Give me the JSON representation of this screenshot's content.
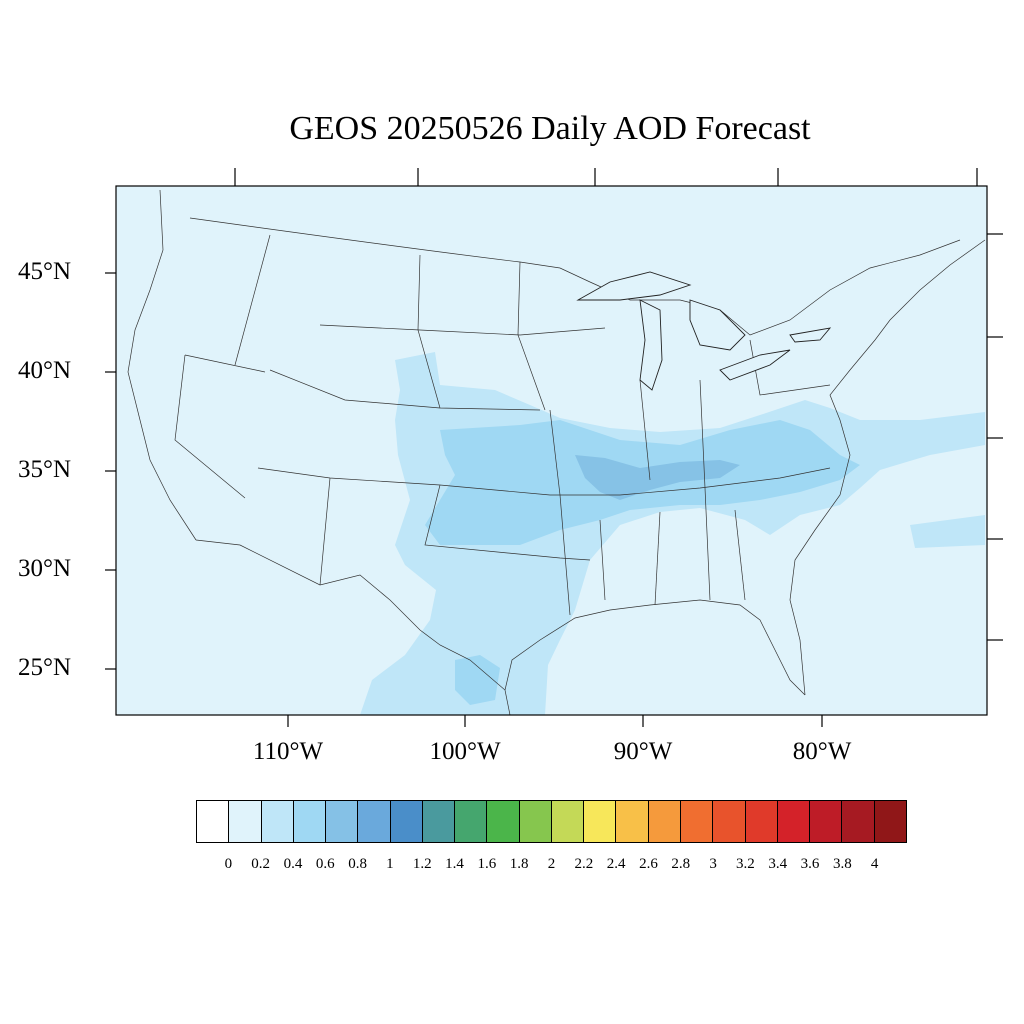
{
  "title": "GEOS 20250526 Daily AOD Forecast",
  "map": {
    "projection": "Lambert conformal",
    "region": "Contiguous United States",
    "variable": "Aerosol Optical Depth",
    "lat_labels": [
      "45°N",
      "40°N",
      "35°N",
      "30°N",
      "25°N"
    ],
    "lon_labels": [
      "110°W",
      "100°W",
      "90°W",
      "80°W"
    ],
    "background_color": "#e0f3fb",
    "features": [
      {
        "name": "aod-plume-central-us",
        "value_range": "0.2-0.4",
        "color": "#bfe6f8"
      },
      {
        "name": "aod-plume-core-ms-valley",
        "value_range": "0.4-0.6",
        "color": "#9fd8f3"
      },
      {
        "name": "aod-plume-hotspot-ar-tn",
        "value_range": "0.6-0.8",
        "color": "#86c2e6"
      },
      {
        "name": "aod-plume-atlantic",
        "value_range": "0.2-0.4",
        "color": "#bfe6f8"
      },
      {
        "name": "aod-plume-south-texas",
        "value_range": "0.2-0.4",
        "color": "#bfe6f8"
      }
    ]
  },
  "colorbar": {
    "labels": [
      "0",
      "0.2",
      "0.4",
      "0.6",
      "0.8",
      "1",
      "1.2",
      "1.4",
      "1.6",
      "1.8",
      "2",
      "2.2",
      "2.4",
      "2.6",
      "2.8",
      "3",
      "3.2",
      "3.4",
      "3.6",
      "3.8",
      "4"
    ],
    "colors": [
      "#ffffff",
      "#e0f3fb",
      "#bfe6f8",
      "#9fd8f3",
      "#85c1e6",
      "#6aa9dc",
      "#4a8ec9",
      "#4a9a9e",
      "#45a66e",
      "#4bb54a",
      "#86c64e",
      "#c4d957",
      "#f7e75a",
      "#f8c048",
      "#f59a3c",
      "#f06e30",
      "#e8532c",
      "#e03a2a",
      "#d42229",
      "#be1c27",
      "#a61a22",
      "#901718"
    ]
  }
}
